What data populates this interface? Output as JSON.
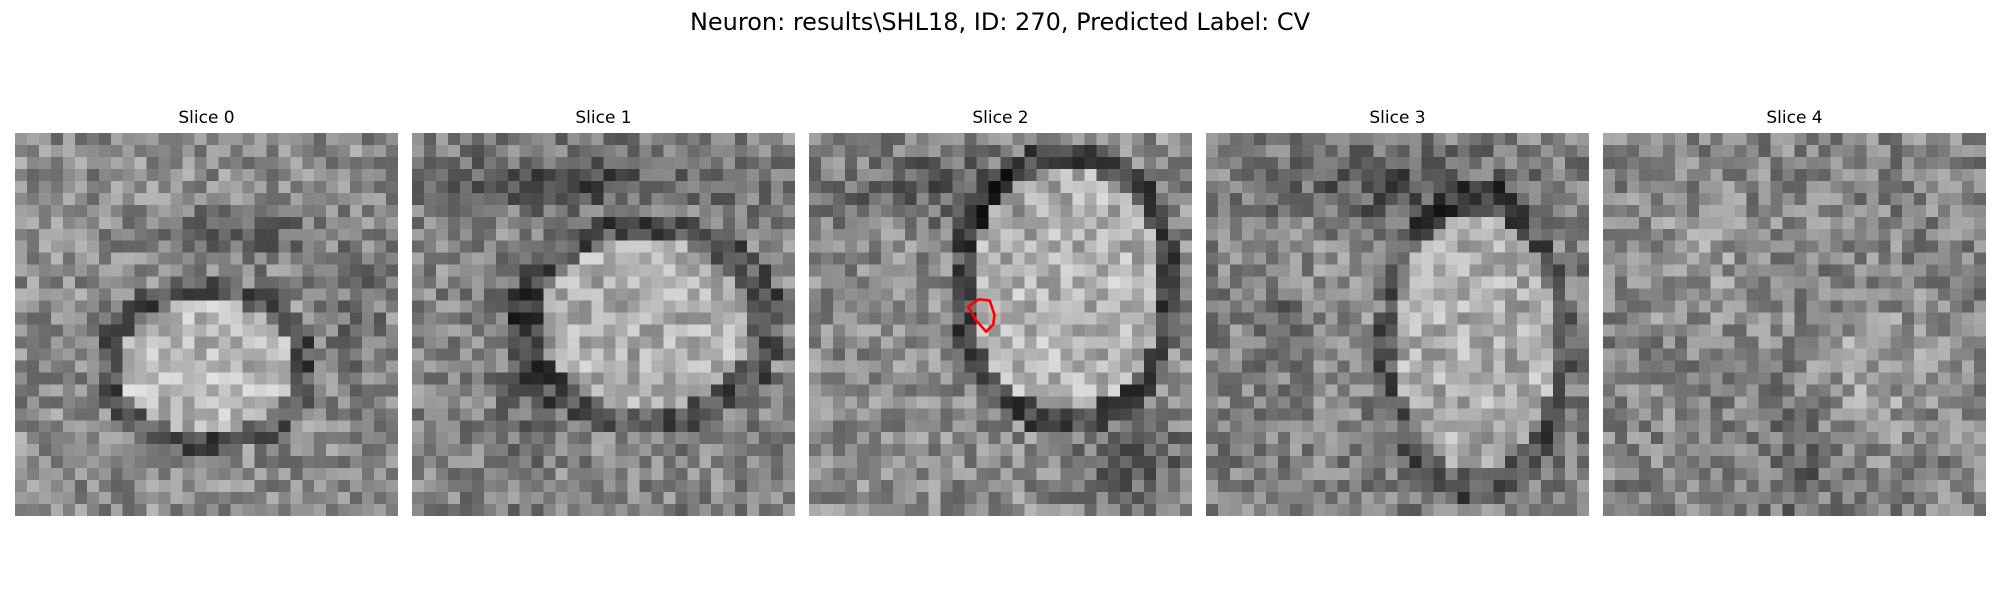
{
  "figure": {
    "title": "Neuron: results\\SHL18, ID: 270, Predicted Label: CV"
  },
  "slices": [
    {
      "title": "Slice 0"
    },
    {
      "title": "Slice 1"
    },
    {
      "title": "Slice 2"
    },
    {
      "title": "Slice 3"
    },
    {
      "title": "Slice 4"
    }
  ],
  "contour": {
    "slice_index": 2,
    "color": "#ff0000",
    "points": [
      [
        13.3,
        14.5
      ],
      [
        14.2,
        13.9
      ],
      [
        15.1,
        14.0
      ],
      [
        15.5,
        15.2
      ],
      [
        15.4,
        16.0
      ],
      [
        14.8,
        16.6
      ],
      [
        14.0,
        15.7
      ]
    ]
  },
  "image": {
    "grid_size": 32,
    "colormap": "gray"
  }
}
